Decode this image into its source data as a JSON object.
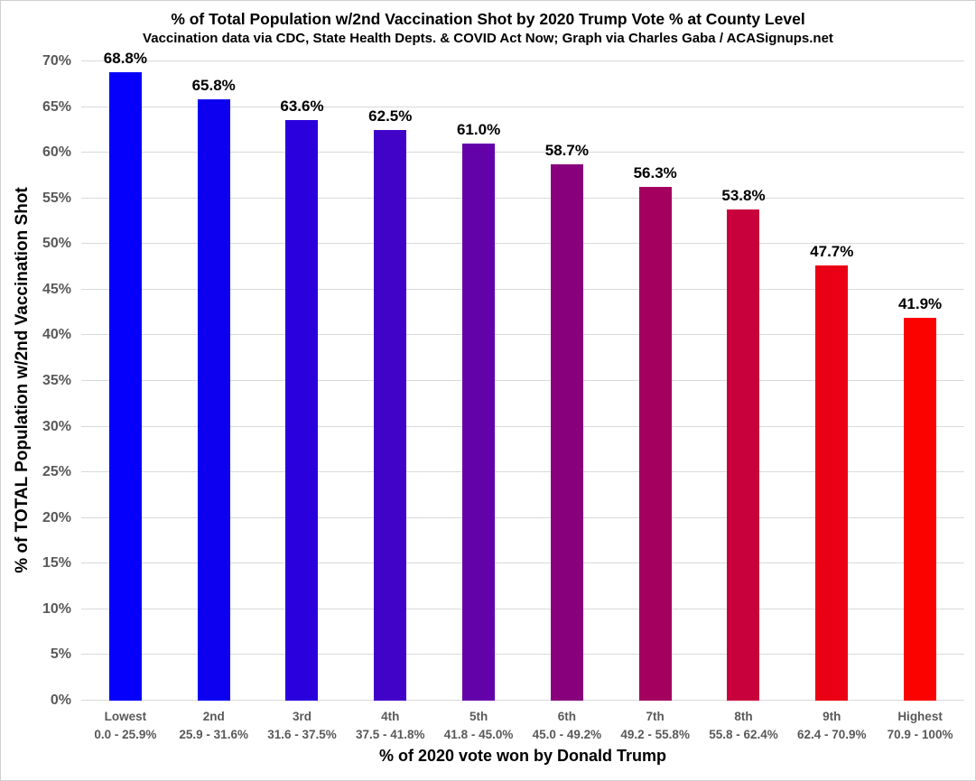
{
  "header": {
    "title": "% of Total Population w/2nd Vaccination Shot by 2020 Trump Vote % at County Level",
    "subtitle": "Vaccination data via CDC, State Health Depts. & COVID Act Now; Graph via Charles Gaba / ACASignups.net"
  },
  "chart_data": {
    "type": "bar",
    "title": "% of Total Population w/2nd Vaccination Shot by 2020 Trump Vote % at County Level",
    "subtitle": "Vaccination data via CDC, State Health Depts. & COVID Act Now; Graph via Charles Gaba / ACASignups.net",
    "xlabel": "% of 2020 vote won by Donald Trump",
    "ylabel": "% of TOTAL Population w/2nd Vaccination Shot",
    "ylim": [
      0,
      70
    ],
    "ytick_step": 5,
    "ytick_labels": [
      "0%",
      "5%",
      "10%",
      "15%",
      "20%",
      "25%",
      "30%",
      "35%",
      "40%",
      "45%",
      "50%",
      "55%",
      "60%",
      "65%",
      "70%"
    ],
    "grid": true,
    "legend": "none",
    "categories": [
      {
        "decile": "Lowest",
        "vote_range": "0.0 - 25.9%"
      },
      {
        "decile": "2nd",
        "vote_range": "25.9 - 31.6%"
      },
      {
        "decile": "3rd",
        "vote_range": "31.6 - 37.5%"
      },
      {
        "decile": "4th",
        "vote_range": "37.5 - 41.8%"
      },
      {
        "decile": "5th",
        "vote_range": "41.8 - 45.0%"
      },
      {
        "decile": "6th",
        "vote_range": "45.0 - 49.2%"
      },
      {
        "decile": "7th",
        "vote_range": "49.2 - 55.8%"
      },
      {
        "decile": "8th",
        "vote_range": "55.8 - 62.4%"
      },
      {
        "decile": "9th",
        "vote_range": "62.4 - 70.9%"
      },
      {
        "decile": "Highest",
        "vote_range": "70.9 - 100%"
      }
    ],
    "values": [
      68.8,
      65.8,
      63.6,
      62.5,
      61.0,
      58.7,
      56.3,
      53.8,
      47.7,
      41.9
    ],
    "value_labels": [
      "68.8%",
      "65.8%",
      "63.6%",
      "62.5%",
      "61.0%",
      "58.7%",
      "56.3%",
      "53.8%",
      "47.7%",
      "41.9%"
    ],
    "bar_colors": [
      "#0500fb",
      "#0d00f1",
      "#2a00dd",
      "#4203c9",
      "#6402aa",
      "#88007c",
      "#a30060",
      "#c8003c",
      "#ea0015",
      "#fb0100"
    ]
  },
  "colors": {
    "background": "#ffffff",
    "frame_border": "#cfcfcf",
    "gridline": "#d9d9d9",
    "tick_label": "#595959",
    "category_label": "#595959",
    "data_label": "#000000",
    "axis_title": "#000000"
  }
}
